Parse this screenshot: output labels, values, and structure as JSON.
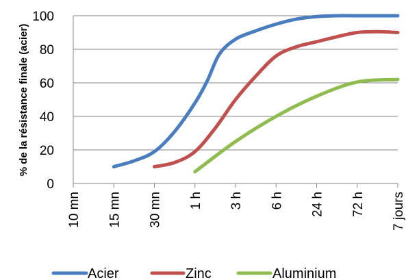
{
  "chart_data": {
    "type": "line",
    "categories": [
      "10 mn",
      "15 mn",
      "30 mn",
      "1 h",
      "3 h",
      "6 h",
      "24 h",
      "72 h",
      "7 jours"
    ],
    "ylabel": "% de la résistance finale (acier)",
    "ylim": [
      0,
      100
    ],
    "yticks": [
      0,
      20,
      40,
      60,
      80,
      100
    ],
    "grid": "horizontal",
    "legend": "bottom",
    "series": [
      {
        "name": "Acier",
        "color": "#4a7dc0",
        "x": [
          1,
          1.5,
          2,
          2.5,
          3,
          3.3,
          3.6,
          4,
          4.5,
          5,
          5.5,
          6,
          6.5,
          7,
          7.5,
          8
        ],
        "values": [
          10,
          13.5,
          19,
          31,
          48,
          61,
          77,
          86,
          91,
          95,
          98,
          99.5,
          100,
          100,
          100,
          100
        ]
      },
      {
        "name": "Zinc",
        "color": "#c0504d",
        "x": [
          2,
          2.5,
          3,
          3.5,
          4,
          4.5,
          5,
          5.5,
          6,
          6.5,
          7,
          7.5,
          8
        ],
        "values": [
          10,
          12.5,
          19,
          33,
          50,
          64,
          76,
          81.5,
          84.5,
          87.5,
          90,
          90.5,
          90
        ]
      },
      {
        "name": "Aluminium",
        "color": "#8fbb4f",
        "x": [
          3,
          4,
          5,
          6,
          7,
          8
        ],
        "values": [
          7,
          25,
          40,
          52,
          60.5,
          62
        ]
      }
    ]
  }
}
